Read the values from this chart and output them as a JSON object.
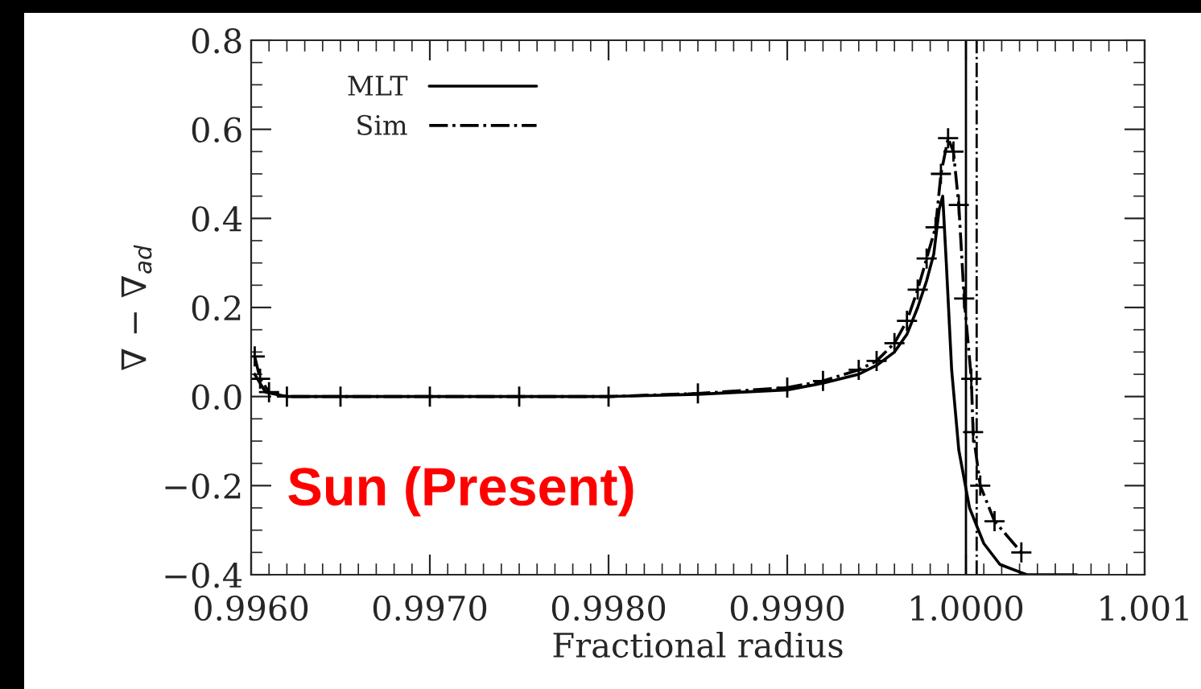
{
  "chart_data": {
    "type": "line",
    "xlabel": "Fractional radius",
    "ylabel": "∇ − ∇$_{ad}$",
    "xlim": [
      0.996,
      1.001
    ],
    "xticks": [
      {
        "value": 0.996,
        "label": "0.9960"
      },
      {
        "value": 0.997,
        "label": "0.9970"
      },
      {
        "value": 0.998,
        "label": "0.9980"
      },
      {
        "value": 0.999,
        "label": "0.9990"
      },
      {
        "value": 1.0,
        "label": "1.0000"
      },
      {
        "value": 1.001,
        "label": "1.001"
      }
    ],
    "ylim": [
      -0.4,
      0.8
    ],
    "yticks": [
      {
        "value": -0.4,
        "label": "−0.4"
      },
      {
        "value": -0.2,
        "label": "−0.2"
      },
      {
        "value": 0.0,
        "label": "0.0"
      },
      {
        "value": 0.2,
        "label": "0.2"
      },
      {
        "value": 0.4,
        "label": "0.4"
      },
      {
        "value": 0.6,
        "label": "0.6"
      },
      {
        "value": 0.8,
        "label": "0.8"
      }
    ],
    "grid": false,
    "legend": "top left",
    "series": [
      {
        "name": "MLT",
        "color": "#000000",
        "line_style": "solid",
        "marker": "none",
        "x": [
          0.99602,
          0.99608,
          0.9962,
          0.997,
          0.998,
          0.9985,
          0.999,
          0.9992,
          0.9994,
          0.9995,
          0.9996,
          0.99967,
          0.99973,
          0.99978,
          0.99982,
          0.99985,
          0.99987,
          0.99989,
          0.99992,
          0.99996,
          1.00002,
          1.0001,
          1.00019,
          1.00034,
          1.00062
        ],
        "values": [
          0.05,
          0.01,
          0.0,
          0.0,
          0.0,
          0.005,
          0.015,
          0.03,
          0.05,
          0.07,
          0.1,
          0.14,
          0.2,
          0.26,
          0.32,
          0.42,
          0.45,
          0.3,
          0.06,
          -0.12,
          -0.25,
          -0.33,
          -0.377,
          -0.4,
          -0.4
        ]
      },
      {
        "name": "Sim",
        "color": "#000000",
        "line_style": "dashdot",
        "marker": "cross",
        "x": [
          0.99602,
          0.99605,
          0.9961,
          0.9962,
          0.9965,
          0.997,
          0.9975,
          0.998,
          0.9985,
          0.999,
          0.9992,
          0.9994,
          0.9995,
          0.9996,
          0.99967,
          0.99973,
          0.99978,
          0.99983,
          0.99986,
          0.9999,
          0.99993,
          0.99996,
          0.99999,
          1.00003,
          1.00004,
          1.00008,
          1.00016,
          1.00031
        ],
        "values": [
          0.09,
          0.04,
          0.01,
          0.0,
          0.0,
          0.0,
          0.0,
          0.0,
          0.007,
          0.02,
          0.035,
          0.06,
          0.08,
          0.12,
          0.17,
          0.24,
          0.31,
          0.38,
          0.5,
          0.58,
          0.55,
          0.43,
          0.22,
          0.04,
          -0.08,
          -0.2,
          -0.28,
          -0.35
        ]
      }
    ],
    "ref_lines": [
      {
        "axis": "x",
        "value": 1.0,
        "line_style": "solid",
        "color": "#000000"
      },
      {
        "axis": "x",
        "value": 1.00006,
        "line_style": "dashdot",
        "color": "#000000"
      }
    ],
    "annotations": [
      "Sun (Present)"
    ]
  }
}
